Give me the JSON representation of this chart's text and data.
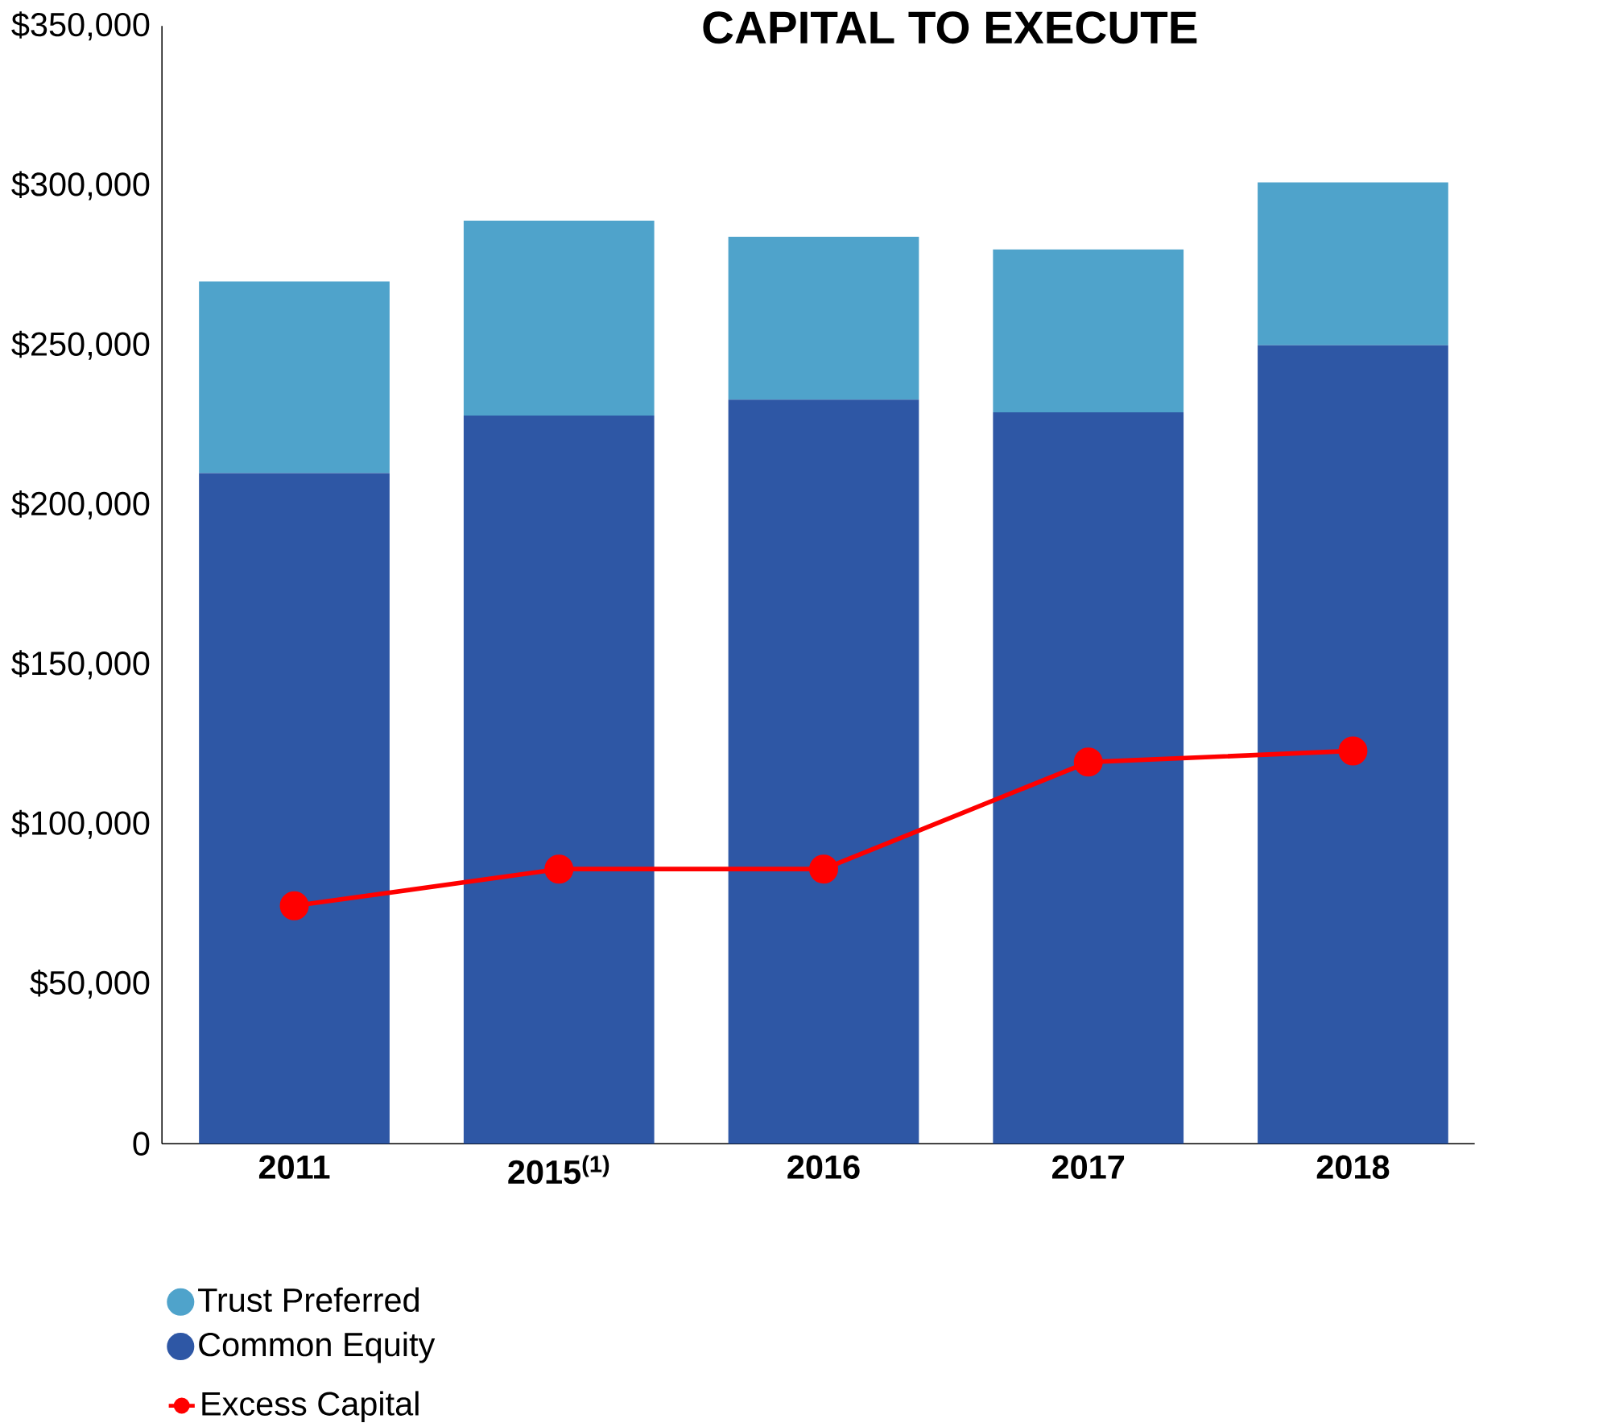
{
  "chart_data": {
    "type": "bar",
    "stacked": true,
    "title": "CAPITAL TO EXECUTE",
    "categories": [
      "2011",
      "2015$^{(1)}$",
      "2016",
      "2017",
      "2018"
    ],
    "series": [
      {
        "name": "Common Equity",
        "color": "#2e57a5",
        "values": [
          210000,
          228000,
          233000,
          229000,
          250000
        ]
      },
      {
        "name": "Trust Preferred",
        "color": "#4fa3cb",
        "values": [
          60000,
          61000,
          51000,
          51000,
          51000
        ]
      },
      {
        "name": "Excess Capital",
        "type": "line",
        "color": "#ff0000",
        "marker": "circle",
        "values": [
          74500,
          86000,
          86000,
          119500,
          123000
        ]
      }
    ],
    "ylim": [
      0,
      350000
    ],
    "yticks": [
      {
        "value": 0,
        "label": "0"
      },
      {
        "value": 50000,
        "label": "$50,000"
      },
      {
        "value": 100000,
        "label": "$100,000"
      },
      {
        "value": 150000,
        "label": "$150,000"
      },
      {
        "value": 200000,
        "label": "$200,000"
      },
      {
        "value": 250000,
        "label": "$250,000"
      },
      {
        "value": 300000,
        "label": "$300,000"
      },
      {
        "value": 350000,
        "label": "$350,000"
      }
    ],
    "grid": false,
    "legend": "bottom left"
  }
}
